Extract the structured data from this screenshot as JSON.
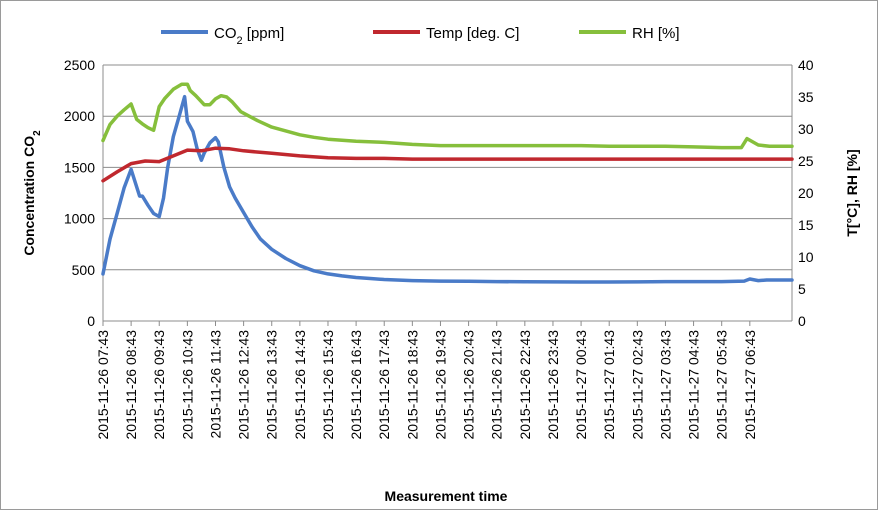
{
  "chart_data": {
    "type": "line",
    "title": "",
    "xlabel": "Measurement time",
    "ylabel": "Concentration CO2",
    "ylabel_base": "Concentration CO",
    "ylabel_sub": "2",
    "y2label": "T[°C], RH [%]",
    "ylim": [
      0,
      2500
    ],
    "yticks": [
      "0",
      "500",
      "1000",
      "1500",
      "2000",
      "2500"
    ],
    "y2lim": [
      0,
      40
    ],
    "y2ticks": [
      "0",
      "5",
      "10",
      "15",
      "20",
      "25",
      "30",
      "35",
      "40"
    ],
    "grid": true,
    "legend_position": "top",
    "categories": [
      "2015-11-26 07:43",
      "2015-11-26 08:43",
      "2015-11-26 09:43",
      "2015-11-26 10:43",
      "2015-11-26 11:43",
      "2015-11-26 12:43",
      "2015-11-26 13:43",
      "2015-11-26 14:43",
      "2015-11-26 15:43",
      "2015-11-26 16:43",
      "2015-11-26 17:43",
      "2015-11-26 18:43",
      "2015-11-26 19:43",
      "2015-11-26 20:43",
      "2015-11-26 21:43",
      "2015-11-26 22:43",
      "2015-11-26 23:43",
      "2015-11-27 00:43",
      "2015-11-27 01:43",
      "2015-11-27 02:43",
      "2015-11-27 03:43",
      "2015-11-27 04:43",
      "2015-11-27 05:43",
      "2015-11-27 06:43"
    ],
    "x_range_hours": [
      0,
      24.5
    ],
    "series": [
      {
        "name": "CO2 [ppm]",
        "legend_base": "CO",
        "legend_sub": "2",
        "legend_tail": " [ppm]",
        "axis": "left",
        "color": "#4a7bc8",
        "x": [
          0,
          0.25,
          0.5,
          0.75,
          1.0,
          1.3,
          1.4,
          1.6,
          1.8,
          2.0,
          2.15,
          2.3,
          2.5,
          2.7,
          2.9,
          3.0,
          3.1,
          3.2,
          3.35,
          3.5,
          3.6,
          3.8,
          4.0,
          4.1,
          4.3,
          4.5,
          4.7,
          5.0,
          5.3,
          5.6,
          6.0,
          6.5,
          7.0,
          7.5,
          8.0,
          8.5,
          9.0,
          9.5,
          10,
          11,
          12,
          13,
          14,
          15,
          16,
          17,
          18,
          19,
          20,
          21,
          22,
          22.8,
          23.0,
          23.3,
          23.6,
          24.0,
          24.5
        ],
        "values": [
          460,
          800,
          1050,
          1300,
          1480,
          1220,
          1220,
          1130,
          1050,
          1020,
          1200,
          1500,
          1800,
          1990,
          2190,
          1950,
          1900,
          1850,
          1680,
          1570,
          1640,
          1740,
          1790,
          1750,
          1500,
          1310,
          1200,
          1060,
          920,
          800,
          700,
          610,
          540,
          490,
          460,
          440,
          425,
          415,
          405,
          395,
          390,
          388,
          385,
          383,
          382,
          381,
          381,
          382,
          385,
          385,
          385,
          390,
          410,
          395,
          400,
          400,
          400
        ]
      },
      {
        "name": "Temp [deg. C]",
        "axis": "right",
        "color": "#c0282e",
        "x": [
          0,
          0.5,
          1.0,
          1.5,
          2.0,
          2.5,
          3.0,
          3.5,
          4.0,
          4.5,
          5.0,
          6.0,
          7.0,
          8.0,
          9.0,
          10,
          11,
          12,
          13,
          14,
          15,
          16,
          17,
          18,
          19,
          20,
          21,
          22,
          23,
          24,
          24.5
        ],
        "values": [
          21.9,
          23.3,
          24.6,
          25.0,
          24.9,
          25.8,
          26.7,
          26.6,
          27.0,
          26.9,
          26.6,
          26.2,
          25.8,
          25.5,
          25.4,
          25.4,
          25.3,
          25.3,
          25.3,
          25.3,
          25.3,
          25.3,
          25.3,
          25.3,
          25.3,
          25.3,
          25.3,
          25.3,
          25.3,
          25.3,
          25.3
        ]
      },
      {
        "name": "RH [%]",
        "axis": "right",
        "color": "#86bf3c",
        "x": [
          0,
          0.25,
          0.5,
          0.75,
          1.0,
          1.2,
          1.4,
          1.6,
          1.8,
          2.0,
          2.2,
          2.5,
          2.8,
          3.0,
          3.1,
          3.3,
          3.6,
          3.8,
          4.0,
          4.2,
          4.4,
          4.6,
          4.9,
          5.2,
          5.5,
          6.0,
          6.5,
          7.0,
          7.5,
          8.0,
          9.0,
          10,
          11,
          12,
          13,
          14,
          15,
          16,
          17,
          18,
          19,
          20,
          21,
          22,
          22.7,
          22.9,
          23.3,
          23.7,
          24.0,
          24.5
        ],
        "values": [
          28.2,
          30.7,
          32.0,
          33.0,
          33.9,
          31.5,
          30.8,
          30.2,
          29.8,
          33.5,
          34.8,
          36.2,
          37.0,
          37.0,
          36.0,
          35.2,
          33.8,
          33.8,
          34.7,
          35.2,
          35.0,
          34.2,
          32.7,
          32.0,
          31.3,
          30.3,
          29.7,
          29.1,
          28.7,
          28.4,
          28.1,
          27.9,
          27.6,
          27.4,
          27.4,
          27.4,
          27.4,
          27.4,
          27.4,
          27.3,
          27.3,
          27.3,
          27.2,
          27.1,
          27.1,
          28.5,
          27.5,
          27.3,
          27.3,
          27.3
        ]
      }
    ]
  }
}
